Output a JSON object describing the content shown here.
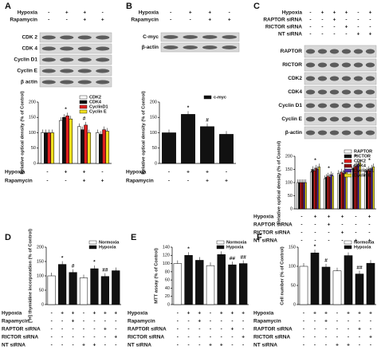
{
  "blots": [
    {
      "treatments": [
        {
          "label": "Hypoxia",
          "signs": [
            "-",
            "+",
            "+",
            "-"
          ]
        },
        {
          "label": "Rapamycin",
          "signs": [
            "-",
            "-",
            "+",
            "+"
          ]
        }
      ],
      "bands": [
        "CDK 2",
        "CDK 4",
        "Cyclin D1",
        "Cyclin E",
        "β actin"
      ]
    },
    {
      "treatments": [
        {
          "label": "Hypoxia",
          "signs": [
            "-",
            "+",
            "+",
            "-"
          ]
        },
        {
          "label": "Rapamycin",
          "signs": [
            "-",
            "-",
            "+",
            "+"
          ]
        }
      ],
      "bands": [
        "C-myc",
        "β-actin"
      ]
    },
    {
      "treatments": [
        {
          "label": "Hypoxia",
          "signs": [
            "-",
            "+",
            "+",
            "+",
            "-",
            "+"
          ]
        },
        {
          "label": "RAPTOR siRNA",
          "signs": [
            "-",
            "-",
            "+",
            "-",
            "-",
            "-"
          ]
        },
        {
          "label": "RICTOR siRNA",
          "signs": [
            "-",
            "-",
            "-",
            "+",
            "-",
            "-"
          ]
        },
        {
          "label": "NT siRNA",
          "signs": [
            "-",
            "-",
            "-",
            "-",
            "+",
            "+"
          ]
        }
      ],
      "bands": [
        "RAPTOR",
        "RICTOR",
        "CDK2",
        "CDK4",
        "Cyclin D1",
        "Cyclin E",
        "β-actin"
      ]
    }
  ],
  "chart_data": [
    {
      "type": "bar",
      "letter": "A",
      "ylabel": "Relative optical density (% of Control)",
      "ylim": [
        0,
        200
      ],
      "yticks": [
        0,
        50,
        100,
        150,
        200
      ],
      "legend": "upper right",
      "series": [
        {
          "name": "CDK2",
          "color": "#ffffff",
          "values": [
            100,
            140,
            120,
            100
          ]
        },
        {
          "name": "CDK4",
          "color": "#111111",
          "values": [
            100,
            150,
            110,
            95
          ]
        },
        {
          "name": "CyclinD1",
          "color": "#e02020",
          "values": [
            100,
            155,
            125,
            110
          ]
        },
        {
          "name": "Cyclin E",
          "color": "#f0e020",
          "values": [
            100,
            145,
            100,
            105
          ]
        }
      ],
      "annotations": [
        null,
        "*",
        "#",
        null
      ],
      "treatments": [
        {
          "label": "Hypoxia",
          "signs": [
            "-",
            "+",
            "+",
            "-"
          ]
        },
        {
          "label": "Rapamycin",
          "signs": [
            "-",
            "-",
            "+",
            "+"
          ]
        }
      ]
    },
    {
      "type": "bar",
      "letter": "B",
      "ylabel": "Relative optical density (% of Control)",
      "ylim": [
        0,
        200
      ],
      "yticks": [
        0,
        50,
        100,
        150,
        200
      ],
      "legend": "upper right",
      "series": [
        {
          "name": "c-myc",
          "color": "#111111",
          "values": [
            100,
            160,
            120,
            95
          ]
        }
      ],
      "annotations": [
        null,
        "*",
        "#",
        null
      ],
      "treatments": [
        {
          "label": "Hypoxia",
          "signs": [
            "-",
            "+",
            "+",
            "-"
          ]
        },
        {
          "label": "Rapamycin",
          "signs": [
            "-",
            "-",
            "+",
            "+"
          ]
        }
      ]
    },
    {
      "type": "bar",
      "letter": "C",
      "ylabel": "Relative optical density (% of Control)",
      "ylim": [
        0,
        200
      ],
      "yticks": [
        0,
        50,
        100,
        150,
        200
      ],
      "legend": "upper right",
      "series": [
        {
          "name": "RAPTOR",
          "color": "#ffffff",
          "values": [
            100,
            140,
            115,
            135,
            150,
            140
          ]
        },
        {
          "name": "RICTOR",
          "color": "#111111",
          "values": [
            100,
            150,
            120,
            130,
            155,
            145
          ]
        },
        {
          "name": "CDK2",
          "color": "#e02020",
          "values": [
            100,
            145,
            125,
            140,
            160,
            150
          ]
        },
        {
          "name": "CDK4",
          "color": "#8b1010",
          "values": [
            100,
            155,
            120,
            135,
            165,
            145
          ]
        },
        {
          "name": "Cyclin D1",
          "color": "#5030a0",
          "values": [
            100,
            150,
            130,
            145,
            170,
            155
          ]
        },
        {
          "name": "Cyclin E",
          "color": "#e8d820",
          "values": [
            100,
            160,
            125,
            140,
            175,
            160
          ]
        }
      ],
      "annotations": [
        null,
        "*",
        "*",
        "*",
        "*",
        "*"
      ],
      "treatments": [
        {
          "label": "Hypoxia",
          "signs": [
            "-",
            "+",
            "+",
            "+",
            "-",
            "+"
          ]
        },
        {
          "label": "RAPTOR siRNA",
          "signs": [
            "-",
            "-",
            "+",
            "-",
            "-",
            "-"
          ]
        },
        {
          "label": "RICTOR siRNA",
          "signs": [
            "-",
            "-",
            "-",
            "+",
            "-",
            "-"
          ]
        },
        {
          "label": "NT siRNA",
          "signs": [
            "-",
            "-",
            "-",
            "-",
            "+",
            "+"
          ]
        }
      ]
    },
    {
      "type": "bar",
      "letter": "D",
      "ylabel": "[³H] thymidine incorporation (% of Control)",
      "ylim": [
        0,
        200
      ],
      "yticks": [
        0,
        50,
        100,
        150,
        200
      ],
      "legend": "upper right",
      "series": [
        {
          "name": "Normoxia",
          "color": "#ffffff",
          "values": [
            100,
            null,
            null,
            93,
            null,
            null,
            null
          ]
        },
        {
          "name": "Hypoxia",
          "color": "#111111",
          "values": [
            null,
            140,
            112,
            null,
            125,
            98,
            118
          ]
        }
      ],
      "annotations": [
        null,
        "*",
        "#",
        null,
        "*",
        "##",
        null
      ],
      "treatments": [
        {
          "label": "Hypoxia",
          "signs": [
            "-",
            "+",
            "+",
            "-",
            "+",
            "+",
            "+"
          ]
        },
        {
          "label": "Rapamycin",
          "signs": [
            "-",
            "-",
            "+",
            "-",
            "-",
            "-",
            "-"
          ]
        },
        {
          "label": "RAPTOR siRNA",
          "signs": [
            "-",
            "-",
            "-",
            "-",
            "-",
            "+",
            "-"
          ]
        },
        {
          "label": "RICTOR siRNA",
          "signs": [
            "-",
            "-",
            "-",
            "-",
            "-",
            "-",
            "+"
          ]
        },
        {
          "label": "NT siRNA",
          "signs": [
            "-",
            "-",
            "-",
            "+",
            "+",
            "-",
            "-"
          ]
        }
      ]
    },
    {
      "type": "bar",
      "letter": "E",
      "ylabel": "MTT assay (% of Control)",
      "ylim": [
        0,
        140
      ],
      "yticks": [
        0,
        20,
        40,
        60,
        80,
        100,
        120,
        140
      ],
      "legend": "upper right",
      "series": [
        {
          "name": "Normoxia",
          "color": "#ffffff",
          "values": [
            100,
            null,
            null,
            95,
            null,
            null,
            null
          ]
        },
        {
          "name": "Hypoxia",
          "color": "#111111",
          "values": [
            null,
            120,
            108,
            null,
            122,
            97,
            100
          ]
        }
      ],
      "annotations": [
        null,
        "*",
        null,
        null,
        "*",
        "##",
        "##"
      ],
      "treatments": [
        {
          "label": "Hypoxia",
          "signs": [
            "-",
            "+",
            "+",
            "-",
            "+",
            "+",
            "+"
          ]
        },
        {
          "label": "Rapamycin",
          "signs": [
            "-",
            "-",
            "+",
            "-",
            "-",
            "-",
            "-"
          ]
        },
        {
          "label": "RAPTOR siRNA",
          "signs": [
            "-",
            "-",
            "-",
            "-",
            "-",
            "+",
            "-"
          ]
        },
        {
          "label": "RICTOR siRNA",
          "signs": [
            "-",
            "-",
            "-",
            "-",
            "-",
            "-",
            "+"
          ]
        },
        {
          "label": "NT siRNA",
          "signs": [
            "-",
            "-",
            "-",
            "+",
            "+",
            "-",
            "-"
          ]
        }
      ]
    },
    {
      "type": "bar",
      "letter": "F",
      "ylabel": "Cell number (% of Control)",
      "ylim": [
        0,
        150
      ],
      "yticks": [
        0,
        50,
        100,
        150
      ],
      "legend": "upper right",
      "series": [
        {
          "name": "Normoxia",
          "color": "#ffffff",
          "values": [
            100,
            null,
            null,
            88,
            null,
            null,
            null
          ]
        },
        {
          "name": "Hypoxia",
          "color": "#111111",
          "values": [
            null,
            135,
            98,
            null,
            128,
            80,
            108
          ]
        }
      ],
      "annotations": [
        null,
        "*",
        "#",
        null,
        "*",
        "##",
        null
      ],
      "treatments": [
        {
          "label": "Hypoxia",
          "signs": [
            "-",
            "+",
            "+",
            "-",
            "+",
            "+",
            "+"
          ]
        },
        {
          "label": "Rapamycin",
          "signs": [
            "-",
            "-",
            "+",
            "-",
            "-",
            "-",
            "-"
          ]
        },
        {
          "label": "RAPTOR siRNA",
          "signs": [
            "-",
            "-",
            "-",
            "-",
            "-",
            "+",
            "-"
          ]
        },
        {
          "label": "RICTOR siRNA",
          "signs": [
            "-",
            "-",
            "-",
            "-",
            "-",
            "-",
            "+"
          ]
        },
        {
          "label": "NT siRNA",
          "signs": [
            "-",
            "-",
            "-",
            "+",
            "+",
            "-",
            "-"
          ]
        }
      ]
    }
  ]
}
